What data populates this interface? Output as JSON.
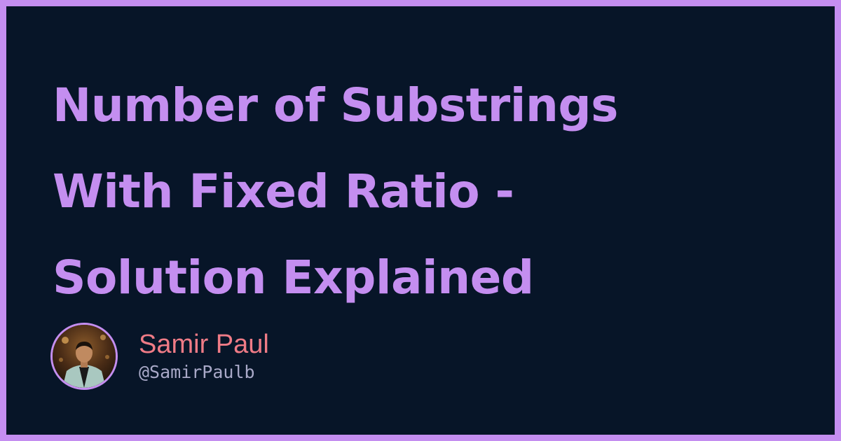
{
  "title": {
    "lines": [
      "Number of Substrings",
      "With Fixed Ratio -",
      "Solution Explained"
    ]
  },
  "author": {
    "name": "Samir Paul",
    "handle": "@SamirPaulb",
    "avatar_icon": "profile-photo"
  },
  "colors": {
    "accent": "#c48ef0",
    "background": "#071528",
    "name": "#ef7b86",
    "handle": "#a9a9c8"
  }
}
